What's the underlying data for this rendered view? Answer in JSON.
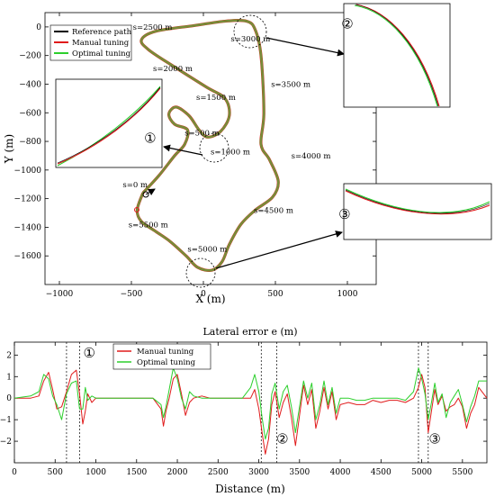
{
  "chart_data": [
    {
      "type": "line",
      "title": "",
      "xlabel": "X (m)",
      "ylabel": "Y (m)",
      "xlim": [
        -1100,
        1200
      ],
      "ylim": [
        -1800,
        100
      ],
      "xticks": [
        -1000,
        -500,
        0,
        500,
        1000
      ],
      "yticks": [
        0,
        -200,
        -400,
        -600,
        -800,
        -1000,
        -1200,
        -1400,
        -1600
      ],
      "grid": false,
      "legend_position": "top-left",
      "series": [
        {
          "name": "Reference path",
          "color": "#000000"
        },
        {
          "name": "Manual tuning",
          "color": "#e01b1b"
        },
        {
          "name": "Optimal tuning",
          "color": "#2ccf2c"
        }
      ],
      "track_color": "#7a8a3a",
      "path_xy": [
        [
          -420,
          -1160
        ],
        [
          -310,
          -1040
        ],
        [
          -200,
          -900
        ],
        [
          -130,
          -820
        ],
        [
          -110,
          -720
        ],
        [
          -200,
          -680
        ],
        [
          -240,
          -610
        ],
        [
          -190,
          -560
        ],
        [
          -100,
          -620
        ],
        [
          -30,
          -720
        ],
        [
          30,
          -770
        ],
        [
          120,
          -730
        ],
        [
          180,
          -620
        ],
        [
          150,
          -500
        ],
        [
          20,
          -420
        ],
        [
          -200,
          -280
        ],
        [
          -380,
          -160
        ],
        [
          -430,
          -90
        ],
        [
          -330,
          -30
        ],
        [
          -60,
          10
        ],
        [
          150,
          40
        ],
        [
          300,
          40
        ],
        [
          360,
          -20
        ],
        [
          400,
          -200
        ],
        [
          420,
          -600
        ],
        [
          400,
          -820
        ],
        [
          460,
          -930
        ],
        [
          520,
          -1080
        ],
        [
          480,
          -1190
        ],
        [
          360,
          -1280
        ],
        [
          260,
          -1380
        ],
        [
          180,
          -1520
        ],
        [
          130,
          -1640
        ],
        [
          60,
          -1700
        ],
        [
          -40,
          -1680
        ],
        [
          -120,
          -1600
        ],
        [
          -230,
          -1500
        ],
        [
          -330,
          -1430
        ],
        [
          -430,
          -1360
        ],
        [
          -460,
          -1280
        ],
        [
          -420,
          -1160
        ]
      ],
      "distance_labels": [
        {
          "text": "s=0 m",
          "x": -560,
          "y": -1120
        },
        {
          "text": "s=500 m",
          "x": -130,
          "y": -760
        },
        {
          "text": "s=1000 m",
          "x": 50,
          "y": -890
        },
        {
          "text": "s=1500 m",
          "x": -50,
          "y": -510
        },
        {
          "text": "s=2000 m",
          "x": -350,
          "y": -310
        },
        {
          "text": "s=2500 m",
          "x": -490,
          "y": -20
        },
        {
          "text": "s=3000 m",
          "x": 190,
          "y": -100
        },
        {
          "text": "s=3500 m",
          "x": 470,
          "y": -420
        },
        {
          "text": "s=4000 m",
          "x": 610,
          "y": -920
        },
        {
          "text": "s=4500 m",
          "x": 350,
          "y": -1300
        },
        {
          "text": "s=5000 m",
          "x": -110,
          "y": -1570
        },
        {
          "text": "s=5500 m",
          "x": -520,
          "y": -1400
        }
      ],
      "circled_markers": [
        {
          "text": "①",
          "x": -370,
          "y": -810
        },
        {
          "text": "②",
          "x": 1000,
          "y": -10
        },
        {
          "text": "③",
          "x": 980,
          "y": -1340
        }
      ]
    },
    {
      "type": "line",
      "title": "Lateral error e (m)",
      "xlabel": "Distance (m)",
      "ylabel": "",
      "xlim": [
        0,
        5800
      ],
      "ylim": [
        -3,
        2.6
      ],
      "xticks": [
        0,
        500,
        1000,
        1500,
        2000,
        2500,
        3000,
        3500,
        4000,
        4500,
        5000,
        5500
      ],
      "yticks": [
        2,
        1,
        0,
        -1,
        -2
      ],
      "grid": false,
      "legend_position": "top-center",
      "series": [
        {
          "name": "Manual tuning",
          "color": "#e01b1b",
          "x": [
            0,
            200,
            300,
            360,
            420,
            470,
            520,
            580,
            640,
            700,
            760,
            800,
            840,
            870,
            900,
            950,
            1000,
            1100,
            1200,
            1300,
            1400,
            1500,
            1600,
            1700,
            1800,
            1830,
            1860,
            1900,
            1950,
            2000,
            2050,
            2100,
            2150,
            2200,
            2300,
            2400,
            2500,
            2600,
            2700,
            2800,
            2900,
            2950,
            3000,
            3040,
            3080,
            3120,
            3160,
            3200,
            3250,
            3300,
            3350,
            3400,
            3450,
            3500,
            3550,
            3600,
            3650,
            3700,
            3750,
            3800,
            3850,
            3900,
            3950,
            4000,
            4100,
            4200,
            4300,
            4400,
            4500,
            4600,
            4700,
            4800,
            4900,
            4960,
            5000,
            5040,
            5080,
            5120,
            5160,
            5200,
            5250,
            5300,
            5350,
            5400,
            5450,
            5500,
            5550,
            5600,
            5650,
            5700,
            5800
          ],
          "y": [
            0,
            0,
            0.1,
            0.8,
            1.2,
            0.4,
            -0.5,
            -0.4,
            0.3,
            1.1,
            1.3,
            0.2,
            -1.2,
            -0.6,
            0.2,
            -0.2,
            0,
            0,
            0,
            0,
            0,
            0,
            0,
            0,
            -0.5,
            -1.3,
            -0.6,
            0,
            0.9,
            1.1,
            0.2,
            -0.8,
            -0.2,
            0,
            0.1,
            0,
            0,
            0,
            0,
            0,
            0,
            0.4,
            -0.5,
            -1.6,
            -2.6,
            -1.9,
            -0.3,
            0.3,
            -0.9,
            -0.2,
            0.2,
            -0.9,
            -2.2,
            -0.8,
            0.6,
            -0.3,
            0.4,
            -1.4,
            -0.6,
            0.5,
            -0.5,
            0.3,
            -1,
            -0.3,
            -0.2,
            -0.3,
            -0.3,
            -0.1,
            -0.2,
            -0.1,
            -0.1,
            -0.2,
            0,
            0.5,
            1.1,
            0.5,
            -1.6,
            -0.6,
            0.4,
            -0.3,
            0.1,
            -0.6,
            -0.4,
            -0.3,
            0,
            -0.4,
            -1.4,
            -0.7,
            -0.3,
            0.5,
            0
          ]
        },
        {
          "name": "Optimal tuning",
          "color": "#2ccf2c",
          "x": [
            0,
            200,
            300,
            360,
            420,
            470,
            520,
            580,
            640,
            700,
            760,
            800,
            840,
            870,
            900,
            950,
            1000,
            1100,
            1200,
            1300,
            1400,
            1500,
            1600,
            1700,
            1800,
            1830,
            1860,
            1900,
            1950,
            2000,
            2050,
            2100,
            2150,
            2200,
            2300,
            2400,
            2500,
            2600,
            2700,
            2800,
            2900,
            2950,
            3000,
            3040,
            3080,
            3120,
            3160,
            3200,
            3250,
            3300,
            3350,
            3400,
            3450,
            3500,
            3550,
            3600,
            3650,
            3700,
            3750,
            3800,
            3850,
            3900,
            3950,
            4000,
            4100,
            4200,
            4300,
            4400,
            4500,
            4600,
            4700,
            4800,
            4900,
            4960,
            5000,
            5040,
            5080,
            5120,
            5160,
            5200,
            5250,
            5300,
            5350,
            5400,
            5450,
            5500,
            5550,
            5600,
            5650,
            5700,
            5800
          ],
          "y": [
            0,
            0.1,
            0.3,
            1.1,
            0.9,
            0.1,
            -0.3,
            -1,
            0.2,
            0.7,
            0.8,
            -0.5,
            -0.5,
            0.5,
            -0.1,
            0.1,
            0,
            0,
            0,
            0,
            0,
            0,
            0,
            0,
            -0.3,
            -0.9,
            -0.4,
            0.4,
            1.4,
            0.9,
            0,
            -0.5,
            0.3,
            0.1,
            0,
            0,
            0,
            0,
            0,
            0,
            0.5,
            1.1,
            0.3,
            -0.9,
            -1.9,
            -1.4,
            0.2,
            0.7,
            -0.5,
            0.3,
            0.6,
            -0.4,
            -1.6,
            -0.4,
            0.8,
            0,
            0.7,
            -1,
            -0.3,
            0.8,
            -0.3,
            0.5,
            -0.7,
            0,
            0,
            -0.1,
            -0.1,
            0,
            0,
            0,
            0,
            -0.1,
            0.3,
            1.4,
            0.9,
            0.2,
            -1,
            -0.2,
            0.7,
            -0.2,
            0.2,
            -0.9,
            -0.2,
            0.1,
            0.4,
            -0.3,
            -1.1,
            -0.4,
            0.1,
            0.8,
            0.8
          ]
        }
      ],
      "vertical_markers": [
        640,
        800,
        3030,
        3220,
        4960,
        5080
      ],
      "region_labels": [
        {
          "text": "①",
          "x": 920,
          "y": 1.9
        },
        {
          "text": "②",
          "x": 3290,
          "y": -2.1
        },
        {
          "text": "③",
          "x": 5160,
          "y": -2.1
        }
      ]
    }
  ],
  "inset_zoom_marks": [
    "①",
    "②",
    "③"
  ]
}
